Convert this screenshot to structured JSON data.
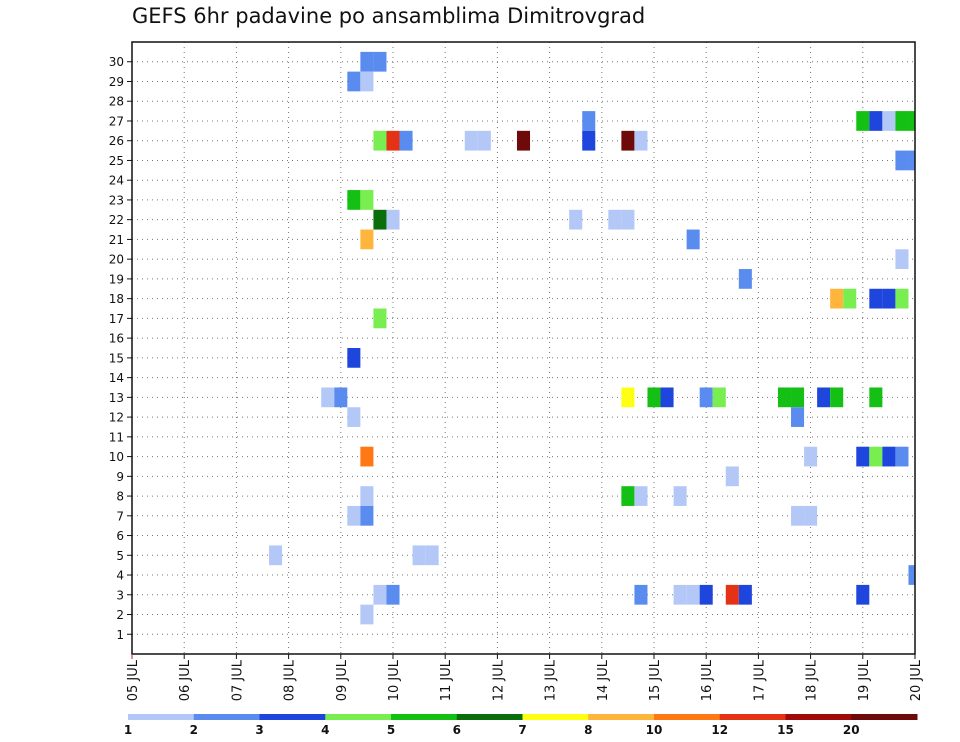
{
  "chart_data": {
    "type": "heatmap",
    "title": "GEFS 6hr padavine po ansamblima Dimitrovgrad",
    "xlabel": "",
    "ylabel": "",
    "x_ticks": [
      "05 JUL",
      "06 JUL",
      "07 JUL",
      "08 JUL",
      "09 JUL",
      "10 JUL",
      "11 JUL",
      "12 JUL",
      "13 JUL",
      "14 JUL",
      "15 JUL",
      "16 JUL",
      "17 JUL",
      "18 JUL",
      "19 JUL",
      "20 JUL"
    ],
    "xlim": [
      0,
      60
    ],
    "x_step": "6hr",
    "y_ticks": [
      "1",
      "2",
      "3",
      "4",
      "5",
      "6",
      "7",
      "8",
      "9",
      "10",
      "11",
      "12",
      "13",
      "14",
      "15",
      "16",
      "17",
      "18",
      "19",
      "20",
      "21",
      "22",
      "23",
      "24",
      "25",
      "26",
      "27",
      "28",
      "29",
      "30"
    ],
    "ylim": [
      0,
      31
    ],
    "grid": true,
    "colorbar": {
      "labels": [
        "1",
        "2",
        "3",
        "4",
        "5",
        "6",
        "7",
        "8",
        "10",
        "12",
        "15",
        "20"
      ],
      "colors": [
        "#b4c8f8",
        "#5a8cf0",
        "#1e46dc",
        "#78ee50",
        "#14c014",
        "#0a6e0a",
        "#ffff14",
        "#ffb43c",
        "#ff7814",
        "#e63214",
        "#a00a0a",
        "#6e0a0a"
      ]
    },
    "cells": [
      {
        "m": 30,
        "x": [
          18,
          19
        ],
        "c": 2
      },
      {
        "m": 29,
        "x": [
          17
        ],
        "c": 2
      },
      {
        "m": 29,
        "x": [
          18
        ],
        "c": 1
      },
      {
        "m": 27,
        "x": [
          35
        ],
        "c": 2
      },
      {
        "m": 27,
        "x": [
          56
        ],
        "c": 5
      },
      {
        "m": 27,
        "x": [
          57
        ],
        "c": 3
      },
      {
        "m": 27,
        "x": [
          58
        ],
        "c": 1
      },
      {
        "m": 27,
        "x": [
          59,
          60
        ],
        "c": 5
      },
      {
        "m": 26,
        "x": [
          19
        ],
        "c": 4
      },
      {
        "m": 26,
        "x": [
          20
        ],
        "c": 10
      },
      {
        "m": 26,
        "x": [
          21
        ],
        "c": 2
      },
      {
        "m": 26,
        "x": [
          26,
          27
        ],
        "c": 1
      },
      {
        "m": 26,
        "x": [
          30
        ],
        "c": 12
      },
      {
        "m": 26,
        "x": [
          35
        ],
        "c": 3
      },
      {
        "m": 26,
        "x": [
          38
        ],
        "c": 12
      },
      {
        "m": 26,
        "x": [
          39
        ],
        "c": 1
      },
      {
        "m": 25,
        "x": [
          59,
          60
        ],
        "c": 2
      },
      {
        "m": 23,
        "x": [
          17
        ],
        "c": 5
      },
      {
        "m": 23,
        "x": [
          18
        ],
        "c": 4
      },
      {
        "m": 22,
        "x": [
          19
        ],
        "c": 6
      },
      {
        "m": 22,
        "x": [
          20
        ],
        "c": 1
      },
      {
        "m": 22,
        "x": [
          34
        ],
        "c": 1
      },
      {
        "m": 22,
        "x": [
          37,
          38
        ],
        "c": 1
      },
      {
        "m": 21,
        "x": [
          18
        ],
        "c": 8
      },
      {
        "m": 21,
        "x": [
          43
        ],
        "c": 2
      },
      {
        "m": 20,
        "x": [
          59
        ],
        "c": 1
      },
      {
        "m": 19,
        "x": [
          47
        ],
        "c": 2
      },
      {
        "m": 18,
        "x": [
          54
        ],
        "c": 8
      },
      {
        "m": 18,
        "x": [
          55
        ],
        "c": 4
      },
      {
        "m": 18,
        "x": [
          57,
          58
        ],
        "c": 3
      },
      {
        "m": 18,
        "x": [
          59
        ],
        "c": 4
      },
      {
        "m": 17,
        "x": [
          19
        ],
        "c": 4
      },
      {
        "m": 15,
        "x": [
          17
        ],
        "c": 3
      },
      {
        "m": 13,
        "x": [
          15
        ],
        "c": 1
      },
      {
        "m": 13,
        "x": [
          16
        ],
        "c": 2
      },
      {
        "m": 13,
        "x": [
          38
        ],
        "c": 7
      },
      {
        "m": 13,
        "x": [
          40
        ],
        "c": 5
      },
      {
        "m": 13,
        "x": [
          41
        ],
        "c": 3
      },
      {
        "m": 13,
        "x": [
          44
        ],
        "c": 2
      },
      {
        "m": 13,
        "x": [
          45
        ],
        "c": 4
      },
      {
        "m": 13,
        "x": [
          50,
          51
        ],
        "c": 5
      },
      {
        "m": 13,
        "x": [
          53
        ],
        "c": 3
      },
      {
        "m": 13,
        "x": [
          54
        ],
        "c": 5
      },
      {
        "m": 13,
        "x": [
          57
        ],
        "c": 5
      },
      {
        "m": 12,
        "x": [
          17
        ],
        "c": 1
      },
      {
        "m": 12,
        "x": [
          51
        ],
        "c": 2
      },
      {
        "m": 10,
        "x": [
          18
        ],
        "c": 9
      },
      {
        "m": 10,
        "x": [
          52
        ],
        "c": 1
      },
      {
        "m": 10,
        "x": [
          56
        ],
        "c": 3
      },
      {
        "m": 10,
        "x": [
          57
        ],
        "c": 4
      },
      {
        "m": 10,
        "x": [
          58
        ],
        "c": 3
      },
      {
        "m": 10,
        "x": [
          59
        ],
        "c": 2
      },
      {
        "m": 9,
        "x": [
          46
        ],
        "c": 1
      },
      {
        "m": 8,
        "x": [
          18
        ],
        "c": 1
      },
      {
        "m": 8,
        "x": [
          38
        ],
        "c": 5
      },
      {
        "m": 8,
        "x": [
          39
        ],
        "c": 1
      },
      {
        "m": 8,
        "x": [
          42
        ],
        "c": 1
      },
      {
        "m": 7,
        "x": [
          17
        ],
        "c": 1
      },
      {
        "m": 7,
        "x": [
          18
        ],
        "c": 2
      },
      {
        "m": 7,
        "x": [
          51,
          52
        ],
        "c": 1
      },
      {
        "m": 5,
        "x": [
          11
        ],
        "c": 1
      },
      {
        "m": 5,
        "x": [
          22,
          23
        ],
        "c": 1
      },
      {
        "m": 4,
        "x": [
          60
        ],
        "c": 2
      },
      {
        "m": 3,
        "x": [
          19
        ],
        "c": 1
      },
      {
        "m": 3,
        "x": [
          20
        ],
        "c": 2
      },
      {
        "m": 3,
        "x": [
          39
        ],
        "c": 2
      },
      {
        "m": 3,
        "x": [
          42,
          43
        ],
        "c": 1
      },
      {
        "m": 3,
        "x": [
          44
        ],
        "c": 3
      },
      {
        "m": 3,
        "x": [
          46
        ],
        "c": 10
      },
      {
        "m": 3,
        "x": [
          47
        ],
        "c": 3
      },
      {
        "m": 3,
        "x": [
          56
        ],
        "c": 3
      },
      {
        "m": 2,
        "x": [
          18
        ],
        "c": 1
      }
    ]
  }
}
